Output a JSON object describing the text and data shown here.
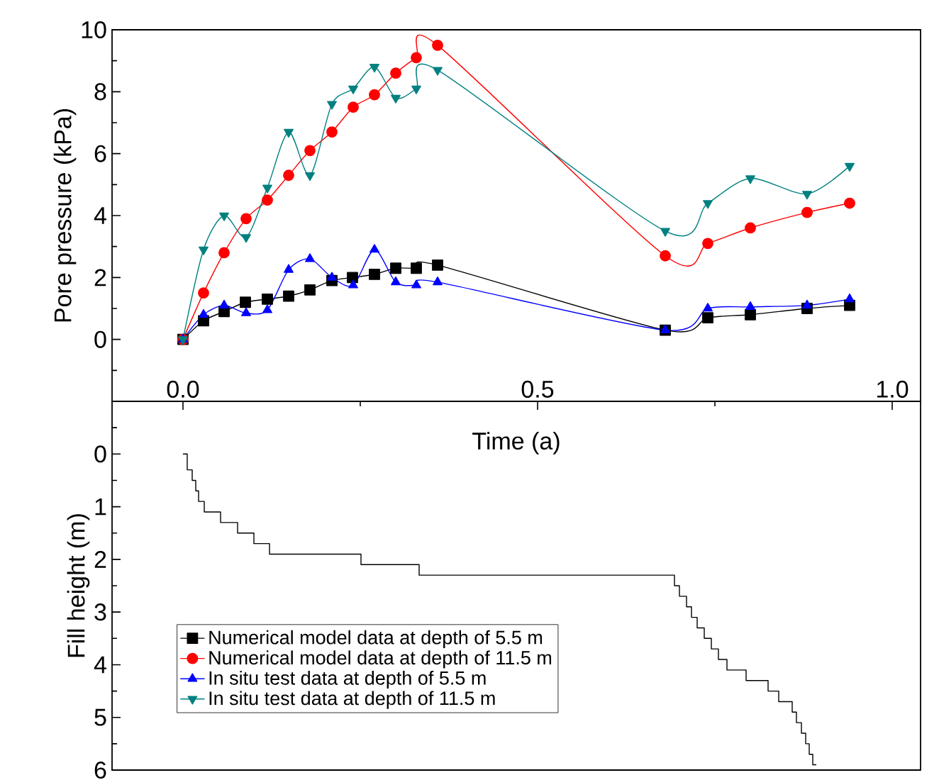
{
  "chart_data": [
    {
      "type": "line",
      "xlabel": "Time (a)",
      "ylabel": "Pore pressure (kPa)",
      "xlim": [
        -0.1,
        1.04
      ],
      "xticks": [
        {
          "value": 0,
          "label": "0.0"
        },
        {
          "value": 0.25,
          "label": null
        },
        {
          "value": 0.5,
          "label": "0.5"
        },
        {
          "value": 0.75,
          "label": null
        },
        {
          "value": 1.0,
          "label": "1.0"
        }
      ],
      "ylim": [
        -2,
        10
      ],
      "yticks": [
        {
          "value": -1,
          "label": null
        },
        0,
        {
          "value": 1,
          "label": null
        },
        2,
        {
          "value": 3,
          "label": null
        },
        4,
        {
          "value": 5,
          "label": null
        },
        6,
        {
          "value": 7,
          "label": null
        },
        8,
        {
          "value": 9,
          "label": null
        },
        10
      ],
      "grid": false,
      "legend": "bottom left",
      "line_style": "solid",
      "series": [
        {
          "name": "Numerical model data at depth of 5.5 m",
          "color": "#000000",
          "marker": "square",
          "x": [
            0,
            0.029,
            0.058,
            0.088,
            0.119,
            0.149,
            0.179,
            0.21,
            0.239,
            0.27,
            0.3,
            0.329,
            0.359,
            0.68,
            0.74,
            0.8,
            0.88,
            0.94
          ],
          "values": [
            0,
            0.6,
            0.9,
            1.2,
            1.3,
            1.4,
            1.6,
            1.9,
            2.0,
            2.1,
            2.3,
            2.3,
            2.4,
            0.3,
            0.7,
            0.8,
            1.0,
            1.1
          ]
        },
        {
          "name": "Numerical model data at depth of 11.5 m",
          "color": "#ff0000",
          "marker": "circle",
          "x": [
            0,
            0.029,
            0.058,
            0.089,
            0.119,
            0.149,
            0.179,
            0.21,
            0.24,
            0.27,
            0.3,
            0.329,
            0.359,
            0.68,
            0.74,
            0.8,
            0.88,
            0.94
          ],
          "values": [
            0,
            1.5,
            2.8,
            3.9,
            4.5,
            5.3,
            6.1,
            6.7,
            7.5,
            7.9,
            8.6,
            9.1,
            9.5,
            2.7,
            3.1,
            3.6,
            4.1,
            4.4
          ]
        },
        {
          "name": "In situ test data at depth of 5.5 m",
          "color": "#0000ff",
          "marker": "triangle",
          "x": [
            0,
            0.029,
            0.058,
            0.089,
            0.119,
            0.149,
            0.179,
            0.21,
            0.24,
            0.27,
            0.3,
            0.329,
            0.359,
            0.68,
            0.74,
            0.8,
            0.88,
            0.94
          ],
          "values": [
            0,
            0.8,
            1.1,
            0.85,
            0.95,
            2.25,
            2.6,
            2.0,
            1.75,
            2.9,
            1.85,
            1.75,
            1.85,
            0.3,
            1.0,
            1.05,
            1.1,
            1.3
          ]
        },
        {
          "name": "In situ test data at depth of 11.5 m",
          "color": "#008080",
          "marker": "triangle-down",
          "x": [
            0,
            0.029,
            0.058,
            0.089,
            0.119,
            0.149,
            0.179,
            0.21,
            0.24,
            0.27,
            0.3,
            0.329,
            0.359,
            0.68,
            0.74,
            0.8,
            0.88,
            0.94
          ],
          "values": [
            0,
            2.9,
            4.0,
            3.3,
            4.9,
            6.7,
            5.3,
            7.6,
            8.1,
            8.8,
            7.8,
            8.1,
            8.7,
            3.5,
            4.4,
            5.2,
            4.7,
            5.6
          ]
        }
      ]
    },
    {
      "type": "step",
      "ylabel": "Fill height (m)",
      "xlim": [
        -0.1,
        1.04
      ],
      "ylim": [
        6,
        -1
      ],
      "yticks": [
        {
          "value": -0.5,
          "label": null
        },
        0,
        {
          "value": 0.5,
          "label": null
        },
        1,
        {
          "value": 1.5,
          "label": null
        },
        2,
        {
          "value": 2.5,
          "label": null
        },
        3,
        {
          "value": 3.5,
          "label": null
        },
        4,
        {
          "value": 4.5,
          "label": null
        },
        5,
        {
          "value": 5.5,
          "label": null
        },
        6
      ],
      "tick_labels": "y",
      "grid": false,
      "legend": false,
      "marker": "none",
      "color": "#000000",
      "x": [
        0,
        0.006,
        0.013,
        0.018,
        0.022,
        0.03,
        0.053,
        0.077,
        0.1,
        0.122,
        0.251,
        0.333,
        0.693,
        0.7,
        0.71,
        0.717,
        0.725,
        0.735,
        0.745,
        0.755,
        0.767,
        0.794,
        0.825,
        0.84,
        0.859,
        0.865,
        0.872,
        0.878,
        0.883,
        0.888,
        0.893
      ],
      "values": [
        0,
        0.3,
        0.5,
        0.7,
        0.9,
        1.1,
        1.3,
        1.5,
        1.7,
        1.9,
        2.1,
        2.3,
        2.5,
        2.7,
        2.9,
        3.1,
        3.3,
        3.5,
        3.7,
        3.9,
        4.1,
        4.3,
        4.5,
        4.7,
        4.9,
        5.1,
        5.3,
        5.5,
        5.7,
        5.9,
        5.9
      ]
    }
  ]
}
